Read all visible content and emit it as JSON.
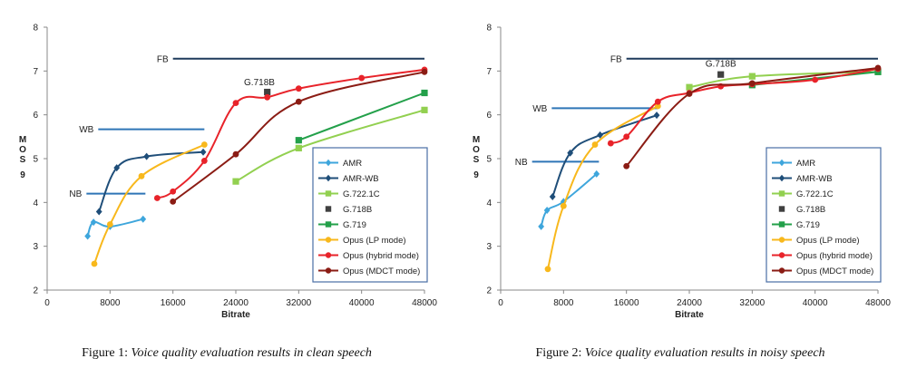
{
  "captions": [
    {
      "label": "Figure 1:",
      "text": "Voice quality evaluation results in clean speech"
    },
    {
      "label": "Figure 2:",
      "text": "Voice quality evaluation results in noisy speech"
    }
  ],
  "chart_data": [
    {
      "type": "line",
      "xlabel": "Bitrate",
      "ylabel": "MOS 9",
      "xlim": [
        0,
        48000
      ],
      "ylim": [
        2,
        8
      ],
      "xticks": [
        0,
        8000,
        16000,
        24000,
        32000,
        40000,
        48000
      ],
      "yticks": [
        2,
        3,
        4,
        5,
        6,
        7,
        8
      ],
      "grid": false,
      "legend_position": "bottom-right",
      "bandwidth_lines": [
        {
          "label": "NB",
          "x": [
            5000,
            12500
          ],
          "y": 4.2,
          "color": "#2e75b6"
        },
        {
          "label": "WB",
          "x": [
            6500,
            20000
          ],
          "y": 5.67,
          "color": "#2e75b6"
        },
        {
          "label": "FB",
          "x": [
            16000,
            48000
          ],
          "y": 7.28,
          "color": "#1f3b5c"
        }
      ],
      "annotations": [
        {
          "text": "G.718B",
          "x": 27000,
          "y": 6.68
        }
      ],
      "series": [
        {
          "name": "AMR",
          "color": "#3ea6dc",
          "marker": "diamond",
          "x": [
            5150,
            5900,
            8000,
            12200
          ],
          "y": [
            3.23,
            3.55,
            3.45,
            3.62
          ]
        },
        {
          "name": "AMR-WB",
          "color": "#1f4e79",
          "marker": "diamond",
          "x": [
            6600,
            8850,
            12650,
            19850
          ],
          "y": [
            3.79,
            4.79,
            5.05,
            5.15
          ]
        },
        {
          "name": "G.722.1C",
          "color": "#92d050",
          "marker": "square",
          "x": [
            24000,
            32000,
            48000
          ],
          "y": [
            4.48,
            5.24,
            6.11
          ]
        },
        {
          "name": "G.718B",
          "color": "#404040",
          "marker": "square",
          "line": false,
          "x": [
            28000
          ],
          "y": [
            6.52
          ]
        },
        {
          "name": "G.719",
          "color": "#23a04a",
          "marker": "square",
          "x": [
            32000,
            48000
          ],
          "y": [
            5.42,
            6.5
          ]
        },
        {
          "name": "Opus (LP mode)",
          "color": "#f8b81c",
          "marker": "circle",
          "x": [
            6000,
            8000,
            12000,
            20000
          ],
          "y": [
            2.6,
            3.5,
            4.6,
            5.32
          ]
        },
        {
          "name": "Opus (hybrid mode)",
          "color": "#e8232a",
          "marker": "circle",
          "x": [
            14000,
            16000,
            20000,
            24000,
            28000,
            32000,
            40000,
            48000
          ],
          "y": [
            4.1,
            4.25,
            4.95,
            6.27,
            6.4,
            6.6,
            6.84,
            7.03
          ]
        },
        {
          "name": "Opus (MDCT mode)",
          "color": "#8b1c14",
          "marker": "circle",
          "x": [
            16000,
            24000,
            32000,
            48000
          ],
          "y": [
            4.02,
            5.1,
            6.3,
            6.98
          ]
        }
      ]
    },
    {
      "type": "line",
      "xlabel": "Bitrate",
      "ylabel": "MOS 9",
      "xlim": [
        0,
        48000
      ],
      "ylim": [
        2,
        8
      ],
      "xticks": [
        0,
        8000,
        16000,
        24000,
        32000,
        40000,
        48000
      ],
      "yticks": [
        2,
        3,
        4,
        5,
        6,
        7,
        8
      ],
      "grid": false,
      "legend_position": "bottom-right",
      "bandwidth_lines": [
        {
          "label": "NB",
          "x": [
            4000,
            12500
          ],
          "y": 4.93,
          "color": "#2e75b6"
        },
        {
          "label": "WB",
          "x": [
            6500,
            20000
          ],
          "y": 6.15,
          "color": "#2e75b6"
        },
        {
          "label": "FB",
          "x": [
            16000,
            48000
          ],
          "y": 7.28,
          "color": "#1f3b5c"
        }
      ],
      "annotations": [
        {
          "text": "G.718B",
          "x": 28000,
          "y": 7.1
        }
      ],
      "series": [
        {
          "name": "AMR",
          "color": "#3ea6dc",
          "marker": "diamond",
          "x": [
            5150,
            5900,
            8000,
            12200
          ],
          "y": [
            3.45,
            3.82,
            4.02,
            4.65
          ]
        },
        {
          "name": "AMR-WB",
          "color": "#1f4e79",
          "marker": "diamond",
          "x": [
            6600,
            8850,
            12650,
            19850
          ],
          "y": [
            4.13,
            5.13,
            5.54,
            5.99
          ]
        },
        {
          "name": "G.722.1C",
          "color": "#92d050",
          "marker": "square",
          "x": [
            24000,
            32000,
            48000
          ],
          "y": [
            6.63,
            6.88,
            6.98
          ]
        },
        {
          "name": "G.718B",
          "color": "#404040",
          "marker": "square",
          "line": false,
          "x": [
            28000
          ],
          "y": [
            6.92
          ]
        },
        {
          "name": "G.719",
          "color": "#23a04a",
          "marker": "square",
          "x": [
            32000,
            48000
          ],
          "y": [
            6.68,
            6.98
          ]
        },
        {
          "name": "Opus (LP mode)",
          "color": "#f8b81c",
          "marker": "circle",
          "x": [
            6000,
            8000,
            12000,
            20000
          ],
          "y": [
            2.48,
            3.92,
            5.32,
            6.2
          ]
        },
        {
          "name": "Opus (hybrid mode)",
          "color": "#e8232a",
          "marker": "circle",
          "x": [
            14000,
            16000,
            20000,
            24000,
            28000,
            32000,
            40000,
            48000
          ],
          "y": [
            5.35,
            5.5,
            6.3,
            6.5,
            6.65,
            6.7,
            6.8,
            7.05
          ]
        },
        {
          "name": "Opus (MDCT mode)",
          "color": "#8b1c14",
          "marker": "circle",
          "x": [
            16000,
            24000,
            32000,
            48000
          ],
          "y": [
            4.83,
            6.48,
            6.72,
            7.07
          ]
        }
      ]
    }
  ]
}
